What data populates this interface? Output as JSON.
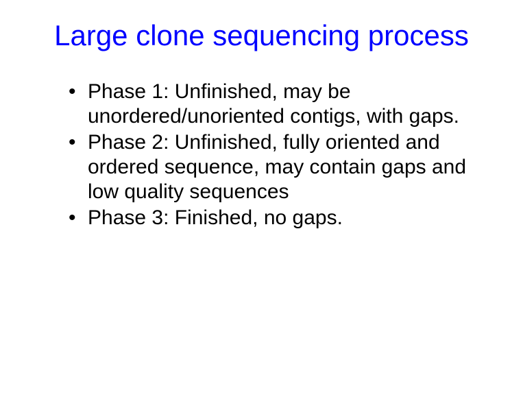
{
  "slide": {
    "title": "Large clone sequencing process",
    "title_color": "#0000ff",
    "title_fontsize": 42,
    "body_color": "#000000",
    "body_fontsize": 30,
    "background_color": "#ffffff",
    "bullets": [
      "Phase 1: Unfinished, may be unordered/unoriented contigs, with gaps.",
      "Phase 2: Unfinished, fully oriented and ordered sequence, may contain gaps and low quality sequences",
      "Phase 3: Finished, no gaps."
    ]
  }
}
